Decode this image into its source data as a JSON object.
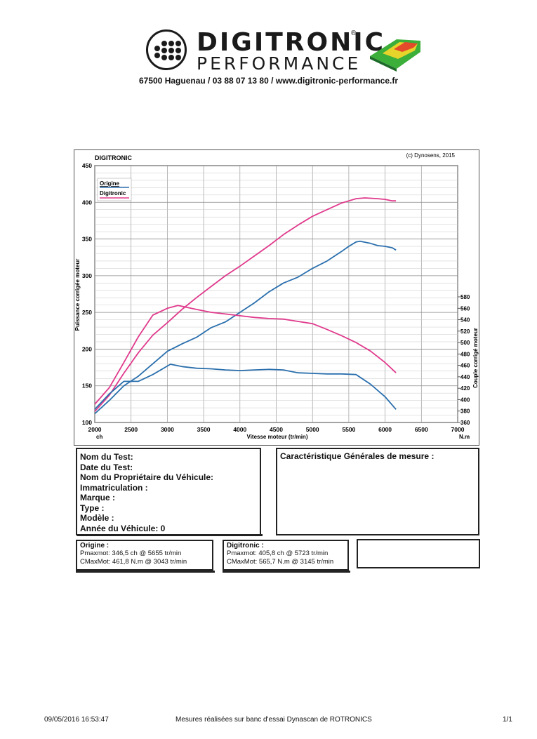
{
  "header": {
    "brand_line1": "DIGITRONIC",
    "brand_line2": "PERFORMANCE",
    "registered": "®",
    "address": "67500 Haguenau / 03 88 07 13 80 / www.digitronic-performance.fr"
  },
  "chart_header": {
    "left": "DIGITRONIC",
    "right": "(c) Dynosens, 2015"
  },
  "chart_data": {
    "type": "line",
    "title": "DIGITRONIC",
    "xlabel": "Vitesse moteur (tr/min)",
    "ylabel_left": "Puissance corrigée moteur",
    "ylabel_right": "Couple corrigé moteur",
    "x_unit": "ch",
    "y_right_unit": "N.m",
    "xlim": [
      2000,
      7000
    ],
    "ylim_left": [
      100,
      450
    ],
    "ylim_right": [
      360,
      580
    ],
    "x_ticks": [
      2000,
      2500,
      3000,
      3500,
      4000,
      4500,
      5000,
      5500,
      6000,
      6500,
      7000
    ],
    "y_left_ticks": [
      100,
      150,
      200,
      250,
      300,
      350,
      400,
      450
    ],
    "y_right_ticks": [
      360,
      380,
      400,
      420,
      440,
      460,
      480,
      500,
      520,
      540,
      560,
      580
    ],
    "grid": true,
    "legend": "top-left",
    "series": [
      {
        "name": "Origine",
        "color": "#2a6fad",
        "measure": "power",
        "axis": "left",
        "x": [
          2000,
          2200,
          2400,
          2600,
          2800,
          3000,
          3200,
          3400,
          3600,
          3800,
          4000,
          4200,
          4400,
          4600,
          4800,
          5000,
          5200,
          5400,
          5500,
          5600,
          5655,
          5800,
          5900,
          6000,
          6100,
          6150
        ],
        "y": [
          112,
          130,
          150,
          163,
          180,
          197,
          207,
          216,
          229,
          237,
          250,
          263,
          278,
          290,
          298,
          310,
          320,
          333,
          340,
          346,
          347,
          344,
          341,
          340,
          338,
          335
        ]
      },
      {
        "name": "Digitronic",
        "color": "#e03a8c",
        "measure": "power",
        "axis": "left",
        "x": [
          2000,
          2200,
          2400,
          2600,
          2800,
          3000,
          3200,
          3400,
          3600,
          3800,
          4000,
          4200,
          4400,
          4600,
          4800,
          5000,
          5200,
          5400,
          5600,
          5723,
          5900,
          6000,
          6100,
          6150
        ],
        "y": [
          115,
          137,
          167,
          195,
          219,
          236,
          254,
          270,
          285,
          300,
          313,
          327,
          341,
          356,
          369,
          381,
          390,
          399,
          405,
          406,
          405,
          404,
          402,
          402
        ]
      },
      {
        "name": "Origine",
        "color": "#2a6fad",
        "measure": "torque",
        "axis": "right",
        "x": [
          2000,
          2200,
          2400,
          2600,
          2800,
          3043,
          3200,
          3400,
          3600,
          3800,
          4000,
          4200,
          4400,
          4600,
          4800,
          5000,
          5200,
          5400,
          5600,
          5800,
          6000,
          6150
        ],
        "y": [
          383,
          410,
          432,
          432,
          444,
          462,
          458,
          455,
          454,
          452,
          451,
          452,
          453,
          452,
          447,
          446,
          445,
          445,
          444,
          427,
          405,
          383
        ]
      },
      {
        "name": "Digitronic",
        "color": "#e03a8c",
        "measure": "torque",
        "axis": "right",
        "x": [
          2000,
          2200,
          2400,
          2600,
          2800,
          3000,
          3145,
          3400,
          3600,
          3800,
          4000,
          4200,
          4400,
          4600,
          4800,
          5000,
          5200,
          5400,
          5600,
          5800,
          6000,
          6150
        ],
        "y": [
          392,
          421,
          465,
          510,
          548,
          560,
          565,
          558,
          553,
          550,
          547,
          544,
          542,
          541,
          537,
          533,
          523,
          512,
          500,
          485,
          465,
          447
        ]
      }
    ]
  },
  "test_info": {
    "nom_du_test": "Nom du Test:",
    "date_du_test": "Date du Test:",
    "proprietaire": "Nom du Propriétaire du Véhicule:",
    "immatriculation": "Immatriculation  :",
    "marque": "Marque  :",
    "type": "Type  :",
    "modele": "Modèle  :",
    "annee": "Année du Véhicule: 0"
  },
  "characteristics_title": "Caractéristique Générales de mesure :",
  "results": {
    "origine": {
      "title": "Origine :",
      "pmaxmot": "Pmaxmot: 346,5 ch @ 5655 tr/min",
      "cmaxmot": "CMaxMot: 461,8 N.m @ 3043 tr/min"
    },
    "digitronic": {
      "title": "Digitronic :",
      "pmaxmot": "Pmaxmot: 405,8 ch @ 5723 tr/min",
      "cmaxmot": "CMaxMot: 565,7 N.m @ 3145 tr/min"
    }
  },
  "footer": {
    "datetime": "09/05/2016 16:53:47",
    "note": "Mesures réalisées sur banc d'essai Dynascan de ROTRONICS",
    "page": "1/1"
  }
}
